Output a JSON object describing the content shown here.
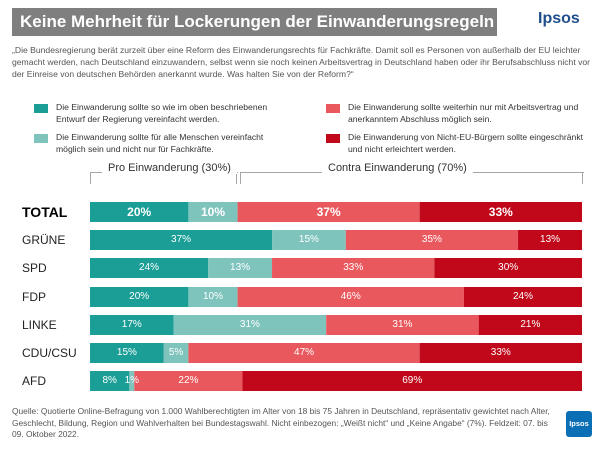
{
  "header": {
    "title": "Keine Mehrheit für Lockerungen der Einwanderungsregeln",
    "brand": "Ipsos"
  },
  "question": "„Die Bundesregierung berät zurzeit über eine Reform des Einwanderungsrechts für Fachkräfte. Damit soll es Personen von außerhalb der EU leichter gemacht werden, nach Deutschland einzuwandern, selbst wenn sie noch keinen Arbeitsvertrag in Deutschland haben oder ihr Berufsabschluss nicht vor der Einreise von deutschen Behörden anerkannt wurde. Was halten Sie von der Reform?“",
  "legend": [
    {
      "label": "Die Einwanderung sollte so wie im oben beschriebenen Entwurf der Regierung vereinfacht werden.",
      "color": "#1a9e96"
    },
    {
      "label": "Die Einwanderung sollte für alle Menschen vereinfacht möglich sein und nicht nur für Fachkräfte.",
      "color": "#7fc3bd"
    },
    {
      "label": "Die Einwanderung sollte weiterhin nur mit Arbeitsvertrag und anerkanntem Abschluss möglich sein.",
      "color": "#e9585d"
    },
    {
      "label": "Die Einwanderung von Nicht-EU-Bürgern sollte eingeschränkt und nicht erleichtert werden.",
      "color": "#c0081a"
    }
  ],
  "groups": {
    "pro": "Pro Einwanderung (30%)",
    "contra": "Contra Einwanderung (70%)"
  },
  "footnote": "Quelle: Quotierte Online-Befragung von 1.000 Wahlberechtigten im Alter von 18 bis 75 Jahren in Deutschland, repräsentativ gewichtet nach Alter, Geschlecht, Bildung, Region und Wahlverhalten bei Bundestagswahl. Nicht einbezogen: „Weißt nicht“ und „Keine Angabe“ (7%). Feldzeit: 07. bis 09. Oktober 2022.",
  "badge": "Ipsos",
  "chart_data": {
    "type": "bar",
    "orientation": "horizontal",
    "stacked": true,
    "categories": [
      "TOTAL",
      "GRÜNE",
      "SPD",
      "FDP",
      "LINKE",
      "CDU/CSU",
      "AFD"
    ],
    "series": [
      {
        "values": [
          20,
          37,
          24,
          20,
          17,
          15,
          8
        ],
        "labels": [
          "20%",
          "37%",
          "24%",
          "20%",
          "17%",
          "15%",
          "8%"
        ],
        "color": "#1a9e96"
      },
      {
        "values": [
          10,
          15,
          13,
          10,
          31,
          5,
          1
        ],
        "labels": [
          "10%",
          "15%",
          "13%",
          "10%",
          "31%",
          "5%",
          "1%"
        ],
        "color": "#7fc3bd"
      },
      {
        "values": [
          37,
          35,
          33,
          46,
          31,
          47,
          22
        ],
        "labels": [
          "37%",
          "35%",
          "33%",
          "46%",
          "31%",
          "47%",
          "22%"
        ],
        "color": "#e9585d"
      },
      {
        "values": [
          33,
          13,
          30,
          24,
          21,
          33,
          69
        ],
        "labels": [
          "33%",
          "13%",
          "30%",
          "24%",
          "21%",
          "33%",
          "69%"
        ],
        "color": "#c0081a"
      }
    ],
    "xlim": [
      0,
      100
    ],
    "grid": false,
    "legend_position": "top"
  }
}
